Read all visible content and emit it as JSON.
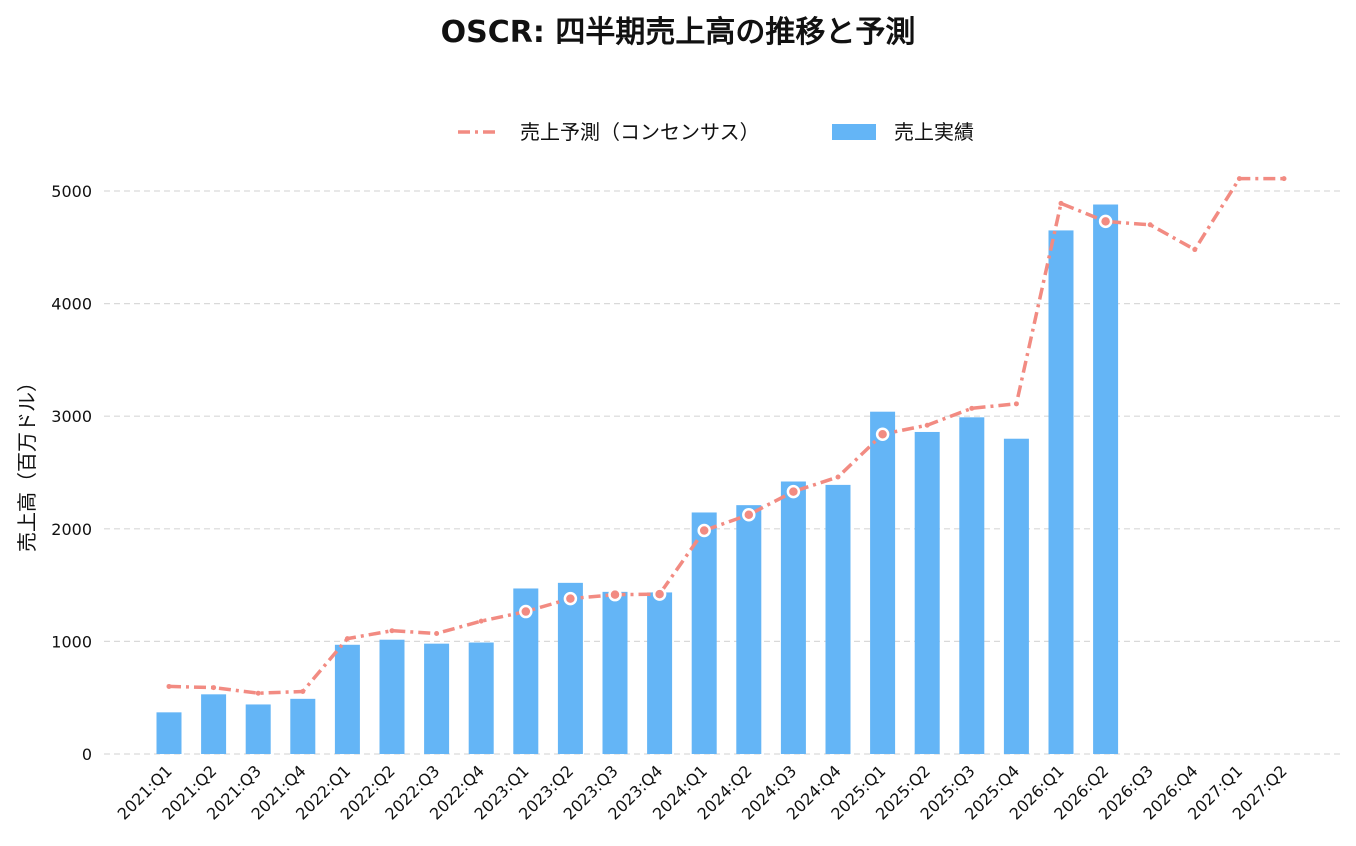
{
  "chart_data": {
    "type": "bar",
    "title": "OSCR: 四半期売上高の推移と予測",
    "ylabel": "売上高（百万ドル）",
    "xlabel": "",
    "ylim": [
      0,
      5300
    ],
    "yticks": [
      0,
      1000,
      2000,
      3000,
      4000,
      5000
    ],
    "grid": true,
    "legend_placement": "top-center",
    "categories": [
      "2021:Q1",
      "2021:Q2",
      "2021:Q3",
      "2021:Q4",
      "2022:Q1",
      "2022:Q2",
      "2022:Q3",
      "2022:Q4",
      "2023:Q1",
      "2023:Q2",
      "2023:Q3",
      "2023:Q4",
      "2024:Q1",
      "2024:Q2",
      "2024:Q3",
      "2024:Q4",
      "2025:Q1",
      "2025:Q2",
      "2025:Q3",
      "2025:Q4",
      "2026:Q1",
      "2026:Q2",
      "2026:Q3",
      "2026:Q4",
      "2027:Q1",
      "2027:Q2"
    ],
    "series": [
      {
        "name": "売上予測（コンセンサス）",
        "kind": "line",
        "style": "dash-dot",
        "color": "#f28b82",
        "values": [
          600,
          590,
          540,
          555,
          1025,
          1095,
          1070,
          1180,
          1265,
          1380,
          1415,
          1420,
          1985,
          2125,
          2330,
          2460,
          2840,
          2920,
          3070,
          3110,
          4890,
          4730,
          4700,
          4480,
          5110,
          5110
        ],
        "highlighted": [
          false,
          false,
          false,
          false,
          false,
          false,
          false,
          false,
          true,
          true,
          true,
          true,
          true,
          true,
          true,
          false,
          true,
          false,
          false,
          false,
          false,
          true,
          false,
          false,
          false,
          false
        ]
      },
      {
        "name": "売上実績",
        "kind": "bar",
        "color": "#64b5f6",
        "values": [
          370,
          530,
          440,
          490,
          970,
          1015,
          980,
          990,
          1470,
          1520,
          1440,
          1435,
          2145,
          2210,
          2420,
          2390,
          3040,
          2860,
          2990,
          2800,
          4650,
          4880,
          null,
          null,
          null,
          null
        ]
      }
    ]
  }
}
